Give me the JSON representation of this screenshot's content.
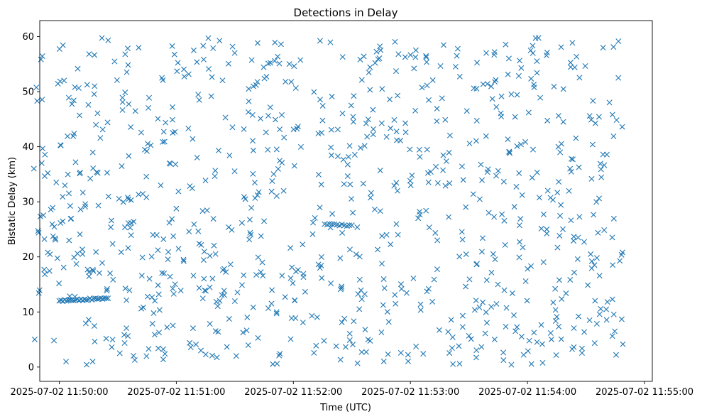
{
  "chart_data": {
    "type": "scatter",
    "title": "Detections in Delay",
    "xlabel": "Time (UTC)",
    "ylabel": "Bistatic Delay (km)",
    "marker": "x",
    "color": "#1f77b4",
    "grid": false,
    "xlim": [
      "2025-07-02 11:49:50",
      "2025-07-02 11:55:04"
    ],
    "ylim": [
      -2.6,
      62.9
    ],
    "x_ticks": [
      "2025-07-02 11:50:00",
      "2025-07-02 11:51:00",
      "2025-07-02 11:52:00",
      "2025-07-02 11:53:00",
      "2025-07-02 11:54:00",
      "2025-07-02 11:55:00"
    ],
    "y_ticks": [
      0,
      10,
      20,
      30,
      40,
      50,
      60
    ],
    "data_time_range": [
      "2025-07-02 11:49:46",
      "2025-07-02 11:54:49"
    ],
    "point_count": 940,
    "clusters": [
      {
        "x_start": "2025-07-02 11:50:00",
        "x_end": "2025-07-02 11:50:25",
        "y_start": 12.0,
        "y_end": 12.5,
        "count": 28
      },
      {
        "x_start": "2025-07-02 11:52:16",
        "x_end": "2025-07-02 11:52:30",
        "y_start": 26.0,
        "y_end": 25.7,
        "count": 12
      }
    ]
  }
}
